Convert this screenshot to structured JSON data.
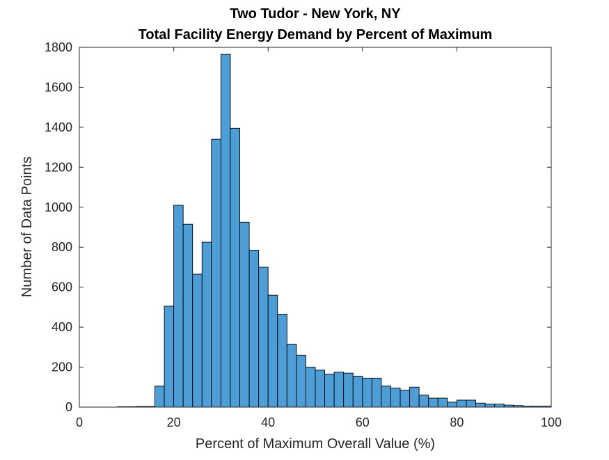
{
  "chart_data": {
    "type": "bar",
    "histogram": true,
    "title_lines": [
      "Two Tudor - New York, NY",
      "Total Facility Energy Demand by Percent of Maximum"
    ],
    "xlabel": "Percent of Maximum Overall Value (%)",
    "ylabel": "Number of Data Points",
    "xlim": [
      0,
      100
    ],
    "ylim": [
      0,
      1800
    ],
    "x_ticks": [
      0,
      20,
      40,
      60,
      80,
      100
    ],
    "y_ticks": [
      0,
      200,
      400,
      600,
      800,
      1000,
      1200,
      1400,
      1600,
      1800
    ],
    "grid": false,
    "bin_edges": [
      8,
      10,
      12,
      14,
      16,
      18,
      20,
      22,
      24,
      26,
      28,
      30,
      32,
      34,
      36,
      38,
      40,
      42,
      44,
      46,
      48,
      50,
      52,
      54,
      56,
      58,
      60,
      62,
      64,
      66,
      68,
      70,
      72,
      74,
      76,
      78,
      80,
      82,
      84,
      86,
      88,
      90,
      92,
      94,
      96,
      98,
      100
    ],
    "values": [
      2,
      2,
      3,
      3,
      105,
      505,
      1010,
      915,
      665,
      825,
      1340,
      1765,
      1395,
      925,
      785,
      700,
      560,
      465,
      315,
      260,
      200,
      185,
      165,
      175,
      170,
      155,
      145,
      145,
      105,
      95,
      85,
      100,
      60,
      45,
      45,
      25,
      35,
      35,
      20,
      15,
      15,
      10,
      8,
      5,
      5,
      5
    ],
    "colors": {
      "bar_fill": "#4d9ed6",
      "bar_edge": "#000000",
      "axis": "#262626"
    }
  }
}
